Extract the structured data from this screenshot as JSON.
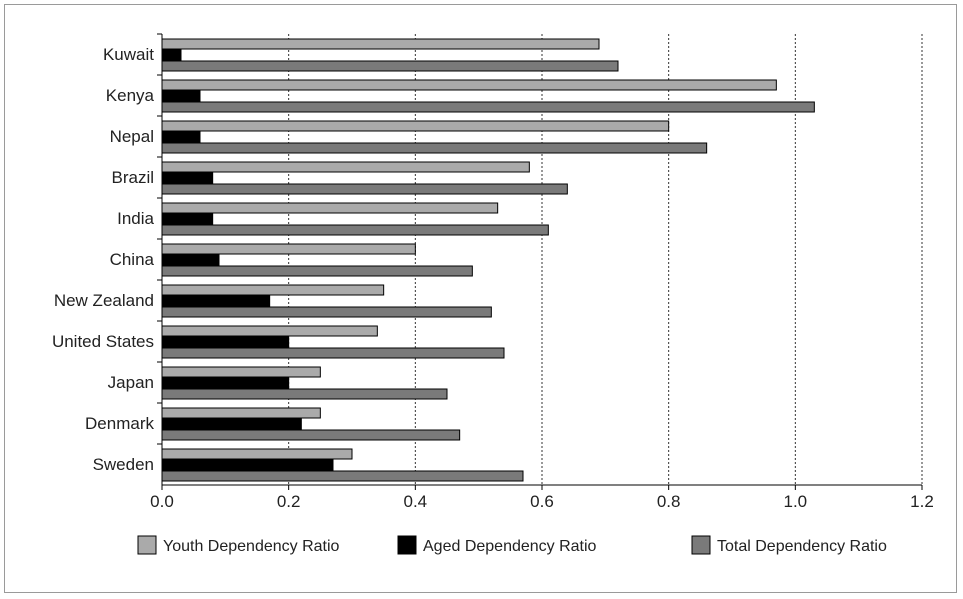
{
  "chart_data": {
    "type": "bar",
    "orientation": "horizontal",
    "categories": [
      "Kuwait",
      "Kenya",
      "Nepal",
      "Brazil",
      "India",
      "China",
      "New Zealand",
      "United States",
      "Japan",
      "Denmark",
      "Sweden"
    ],
    "series": [
      {
        "name": "Youth Dependency Ratio",
        "color": "#aaaaaa",
        "values": [
          0.69,
          0.97,
          0.8,
          0.58,
          0.53,
          0.4,
          0.35,
          0.34,
          0.25,
          0.25,
          0.3
        ]
      },
      {
        "name": "Aged Dependency Ratio",
        "color": "#000000",
        "values": [
          0.03,
          0.06,
          0.06,
          0.08,
          0.08,
          0.09,
          0.17,
          0.2,
          0.2,
          0.22,
          0.27
        ]
      },
      {
        "name": "Total Dependency Ratio",
        "color": "#7a7a7a",
        "values": [
          0.72,
          1.03,
          0.86,
          0.64,
          0.61,
          0.49,
          0.52,
          0.54,
          0.45,
          0.47,
          0.57
        ]
      }
    ],
    "xlim": [
      0,
      1.2
    ],
    "xticks": [
      "0.0",
      "0.2",
      "0.4",
      "0.6",
      "0.8",
      "1.0",
      "1.2"
    ],
    "grid": "vertical-dotted",
    "legend": "bottom"
  }
}
